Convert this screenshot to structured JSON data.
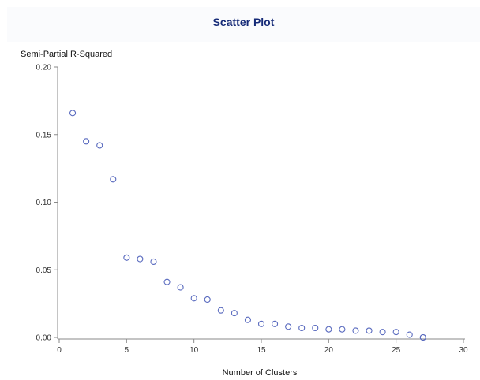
{
  "chart_data": {
    "type": "scatter",
    "title": "Scatter Plot",
    "xlabel": "Number of Clusters",
    "ylabel": "Semi-Partial R-Squared",
    "xlim": [
      0,
      30
    ],
    "ylim": [
      0,
      0.2
    ],
    "x_ticks": [
      "0",
      "5",
      "10",
      "15",
      "20",
      "25",
      "30"
    ],
    "y_ticks": [
      "0.00",
      "0.05",
      "0.10",
      "0.15",
      "0.20"
    ],
    "grid": false,
    "marker_color": "#5a6bbf",
    "points": [
      {
        "x": 1,
        "y": 0.166
      },
      {
        "x": 2,
        "y": 0.145
      },
      {
        "x": 3,
        "y": 0.142
      },
      {
        "x": 4,
        "y": 0.117
      },
      {
        "x": 5,
        "y": 0.059
      },
      {
        "x": 6,
        "y": 0.058
      },
      {
        "x": 7,
        "y": 0.056
      },
      {
        "x": 8,
        "y": 0.041
      },
      {
        "x": 9,
        "y": 0.037
      },
      {
        "x": 10,
        "y": 0.029
      },
      {
        "x": 11,
        "y": 0.028
      },
      {
        "x": 12,
        "y": 0.02
      },
      {
        "x": 13,
        "y": 0.018
      },
      {
        "x": 14,
        "y": 0.013
      },
      {
        "x": 15,
        "y": 0.01
      },
      {
        "x": 16,
        "y": 0.01
      },
      {
        "x": 17,
        "y": 0.008
      },
      {
        "x": 18,
        "y": 0.007
      },
      {
        "x": 19,
        "y": 0.007
      },
      {
        "x": 20,
        "y": 0.006
      },
      {
        "x": 21,
        "y": 0.006
      },
      {
        "x": 22,
        "y": 0.005
      },
      {
        "x": 23,
        "y": 0.005
      },
      {
        "x": 24,
        "y": 0.004
      },
      {
        "x": 25,
        "y": 0.004
      },
      {
        "x": 26,
        "y": 0.002
      },
      {
        "x": 27,
        "y": 0.0
      },
      {
        "x": 27,
        "y": 0.0
      }
    ]
  }
}
